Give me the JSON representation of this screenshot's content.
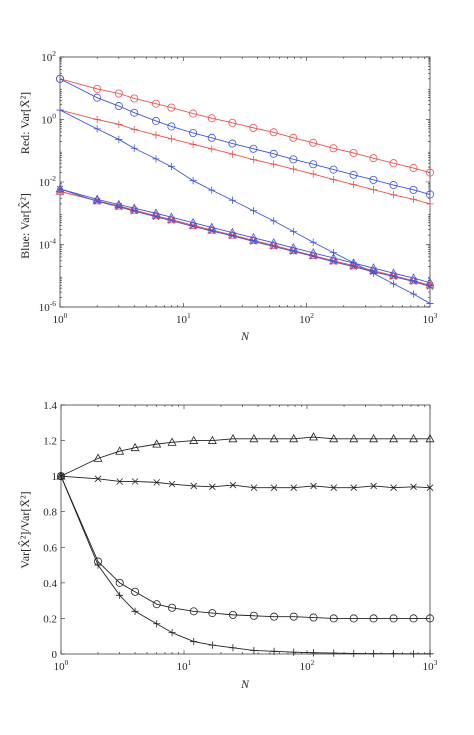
{
  "colors": {
    "red": "#e8524f",
    "blue": "#4055d9",
    "black": "#222222"
  },
  "chart_data": [
    {
      "type": "line",
      "xscale": "log",
      "yscale": "log",
      "xlabel": "N",
      "ylabel_top": "Red: Var[X̄²]",
      "ylabel_bottom": "Blue: Var[X̂²]",
      "xlim": [
        1,
        1000
      ],
      "ylim": [
        1e-06,
        100
      ],
      "x_ticks": [
        {
          "base": "10",
          "exp": "0",
          "v": 1
        },
        {
          "base": "10",
          "exp": "1",
          "v": 10
        },
        {
          "base": "10",
          "exp": "2",
          "v": 100
        },
        {
          "base": "10",
          "exp": "3",
          "v": 1000
        }
      ],
      "y_ticks": [
        {
          "base": "10",
          "exp": "-6",
          "v": 1e-06
        },
        {
          "base": "10",
          "exp": "-4",
          "v": 0.0001
        },
        {
          "base": "10",
          "exp": "-2",
          "v": 0.01
        },
        {
          "base": "10",
          "exp": "0",
          "v": 1
        },
        {
          "base": "10",
          "exp": "2",
          "v": 100
        }
      ],
      "x": [
        1,
        2,
        3,
        4,
        6,
        8,
        12,
        17,
        25,
        37,
        54,
        78,
        113,
        165,
        240,
        348,
        506,
        735,
        1000
      ],
      "series": [
        {
          "color": "red",
          "marker": "circle",
          "values": [
            20.0,
            9.5,
            6.8,
            4.7,
            3.2,
            2.4,
            1.55,
            1.1,
            0.78,
            0.54,
            0.39,
            0.26,
            0.18,
            0.12,
            0.085,
            0.058,
            0.04,
            0.028,
            0.02
          ]
        },
        {
          "color": "red",
          "marker": "plus",
          "values": [
            2.0,
            1.0,
            0.7,
            0.48,
            0.32,
            0.24,
            0.16,
            0.115,
            0.078,
            0.052,
            0.037,
            0.026,
            0.018,
            0.012,
            0.0083,
            0.0057,
            0.0039,
            0.0028,
            0.002
          ]
        },
        {
          "color": "red",
          "marker": "triangle",
          "values": [
            0.005,
            0.0025,
            0.0017,
            0.00125,
            0.00083,
            0.00062,
            0.00041,
            0.00029,
            0.0002,
            0.000135,
            9.3e-05,
            6.4e-05,
            4.4e-05,
            3e-05,
            2.1e-05,
            1.45e-05,
            1e-05,
            6.9e-06,
            5e-06
          ]
        },
        {
          "color": "red",
          "marker": "x",
          "values": [
            0.005,
            0.0025,
            0.0017,
            0.00125,
            0.00083,
            0.00062,
            0.00041,
            0.00029,
            0.0002,
            0.000135,
            9.3e-05,
            6.4e-05,
            4.4e-05,
            3e-05,
            2.1e-05,
            1.45e-05,
            1e-05,
            6.9e-06,
            5e-06
          ]
        },
        {
          "color": "blue",
          "marker": "circle",
          "values": [
            20.0,
            5.0,
            2.7,
            1.65,
            0.9,
            0.6,
            0.37,
            0.26,
            0.17,
            0.116,
            0.08,
            0.053,
            0.037,
            0.025,
            0.017,
            0.0117,
            0.008,
            0.0056,
            0.004
          ]
        },
        {
          "color": "blue",
          "marker": "plus",
          "values": [
            2.0,
            0.5,
            0.23,
            0.12,
            0.055,
            0.031,
            0.011,
            0.0055,
            0.0026,
            0.0012,
            0.00057,
            0.00026,
            0.000118,
            5.5e-05,
            2.6e-05,
            1.2e-05,
            5.5e-06,
            2.6e-06,
            1.3e-06
          ]
        },
        {
          "color": "blue",
          "marker": "triangle",
          "values": [
            0.006,
            0.0028,
            0.0019,
            0.00145,
            0.001,
            0.00075,
            0.0005,
            0.00035,
            0.00024,
            0.000165,
            0.000113,
            7.8e-05,
            5.4e-05,
            3.7e-05,
            2.55e-05,
            1.76e-05,
            1.21e-05,
            8.4e-06,
            6e-06
          ]
        },
        {
          "color": "blue",
          "marker": "x",
          "values": [
            0.006,
            0.0024,
            0.0016,
            0.00117,
            0.00077,
            0.00058,
            0.00038,
            0.00027,
            0.00019,
            0.000125,
            8.7e-05,
            6e-05,
            4.2e-05,
            2.8e-05,
            1.95e-05,
            1.34e-05,
            9.4e-06,
            6.5e-06,
            4.5e-06
          ]
        }
      ]
    },
    {
      "type": "line",
      "xscale": "log",
      "xlabel": "N",
      "ylabel": "Var[X̂²]/Var[X̄²]",
      "xlim": [
        1,
        1000
      ],
      "ylim": [
        0,
        1.4
      ],
      "x_ticks": [
        {
          "base": "10",
          "exp": "0",
          "v": 1
        },
        {
          "base": "10",
          "exp": "1",
          "v": 10
        },
        {
          "base": "10",
          "exp": "2",
          "v": 100
        },
        {
          "base": "10",
          "exp": "3",
          "v": 1000
        }
      ],
      "y_ticks": [
        "0",
        "0.2",
        "0.4",
        "0.6",
        "0.8",
        "1",
        "1.2",
        "1.4"
      ],
      "x": [
        1,
        2,
        3,
        4,
        6,
        8,
        12,
        17,
        25,
        37,
        54,
        78,
        113,
        165,
        240,
        348,
        506,
        735,
        1000
      ],
      "series": [
        {
          "color": "black",
          "marker": "triangle",
          "values": [
            1.0,
            1.1,
            1.14,
            1.16,
            1.18,
            1.19,
            1.2,
            1.2,
            1.21,
            1.21,
            1.21,
            1.21,
            1.22,
            1.21,
            1.21,
            1.21,
            1.21,
            1.21,
            1.21
          ]
        },
        {
          "color": "black",
          "marker": "x",
          "values": [
            1.0,
            0.985,
            0.97,
            0.97,
            0.965,
            0.955,
            0.945,
            0.94,
            0.95,
            0.935,
            0.935,
            0.935,
            0.945,
            0.935,
            0.935,
            0.945,
            0.935,
            0.94,
            0.935
          ]
        },
        {
          "color": "black",
          "marker": "circle",
          "values": [
            1.0,
            0.52,
            0.4,
            0.35,
            0.28,
            0.26,
            0.24,
            0.23,
            0.22,
            0.215,
            0.21,
            0.21,
            0.205,
            0.2,
            0.2,
            0.2,
            0.2,
            0.2,
            0.2
          ]
        },
        {
          "color": "black",
          "marker": "plus",
          "values": [
            1.0,
            0.5,
            0.33,
            0.24,
            0.17,
            0.12,
            0.07,
            0.05,
            0.035,
            0.02,
            0.015,
            0.01,
            0.007,
            0.005,
            0.003,
            0.002,
            0.002,
            0.001,
            0.001
          ]
        }
      ]
    }
  ]
}
